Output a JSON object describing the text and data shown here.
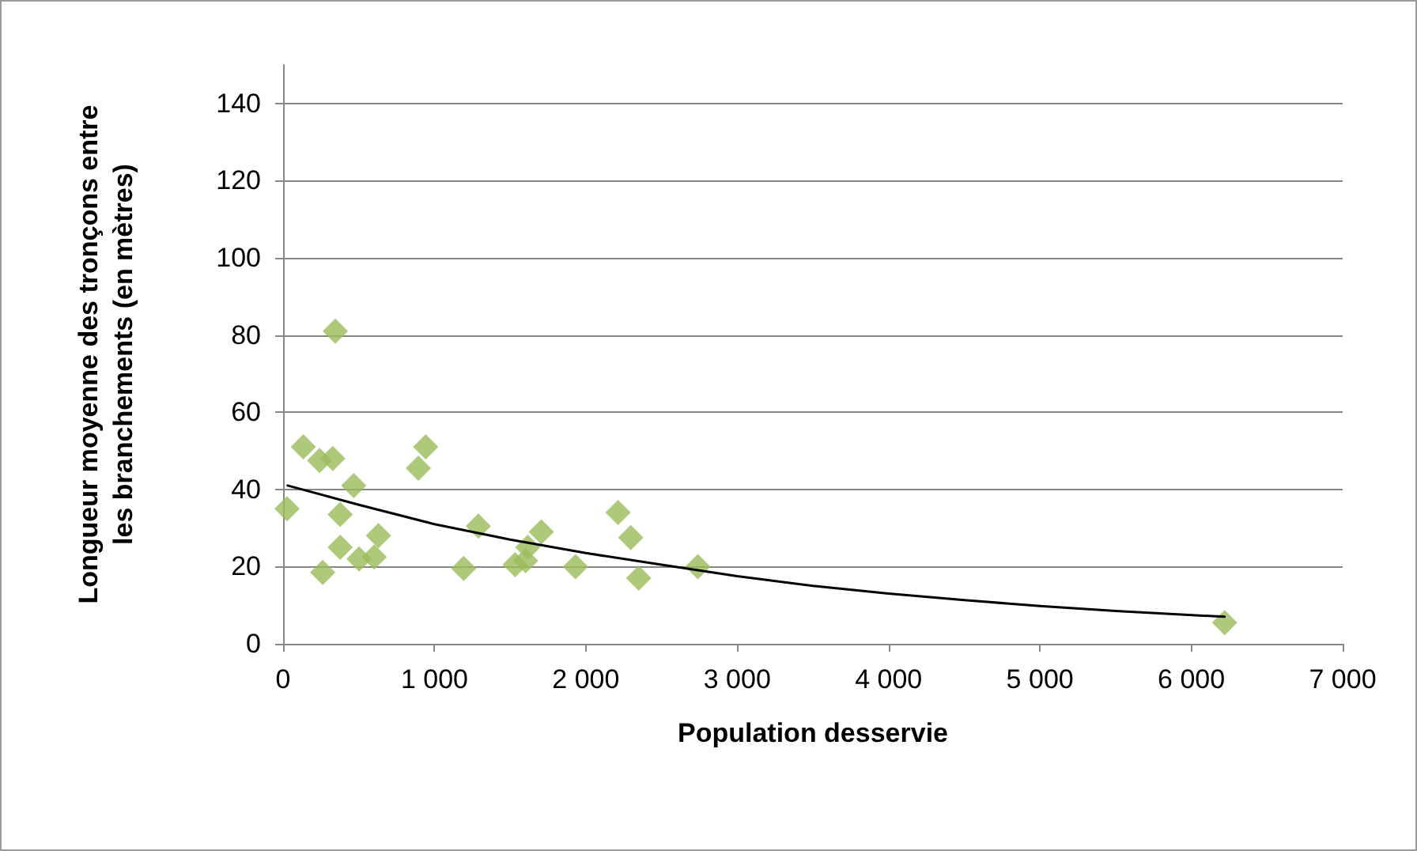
{
  "chart_data": {
    "type": "scatter",
    "xlabel": "Population desservie",
    "ylabel": "Longueur moyenne des tronçons entre les branchements (en mètres)",
    "xlim": [
      0,
      7000
    ],
    "xticks": [
      0,
      {
        "value": 1000,
        "label": "1 000"
      },
      {
        "value": 2000,
        "label": "2 000"
      },
      {
        "value": 3000,
        "label": "3 000"
      },
      {
        "value": 4000,
        "label": "4 000"
      },
      {
        "value": 5000,
        "label": "5 000"
      },
      {
        "value": 6000,
        "label": "6 000"
      },
      {
        "value": 7000,
        "label": "7 000"
      }
    ],
    "ylim": [
      0,
      150
    ],
    "yticks": [
      0,
      20,
      40,
      60,
      80,
      100,
      120,
      140
    ],
    "grid": "y",
    "series": [
      {
        "marker": "diamond",
        "color": "#9bbb59",
        "x": [
          26,
          134,
          241,
          328,
          345,
          467,
          377,
          377,
          262,
          502,
          602,
          630,
          942,
          894,
          1290,
          1193,
          1533,
          1602,
          1616,
          1706,
          1932,
          2213,
          2297,
          2349,
          2740,
          6220
        ],
        "values": [
          35,
          51,
          47.5,
          48,
          81,
          41,
          33.5,
          25,
          18.5,
          22,
          22.5,
          28,
          51,
          45.5,
          30.5,
          19.5,
          20.5,
          21.5,
          25,
          29,
          20,
          34,
          27.5,
          17,
          20,
          5.5
        ]
      },
      {
        "type": "line",
        "marker": "none",
        "line_style": "solid",
        "color": "#000000",
        "x": [
          30,
          500,
          1000,
          1500,
          2000,
          2500,
          3000,
          3500,
          4000,
          4500,
          5000,
          5500,
          6220
        ],
        "values": [
          41,
          36,
          31,
          27,
          23.5,
          20.5,
          17.5,
          15,
          13,
          11.3,
          9.8,
          8.5,
          7
        ]
      }
    ]
  }
}
